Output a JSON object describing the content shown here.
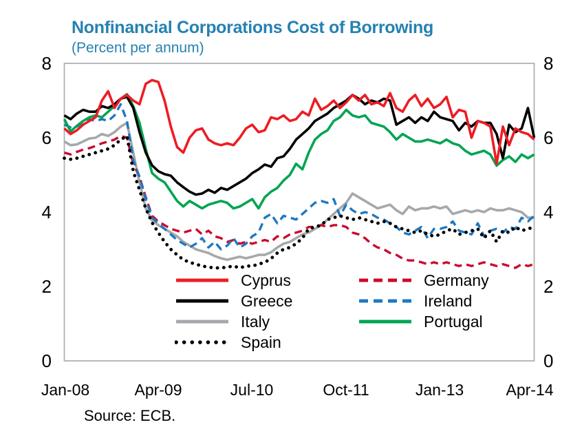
{
  "header": {
    "title": "Nonfinancial Corporations Cost of Borrowing",
    "subtitle": "(Percent per annum)"
  },
  "source_note": "Source: ECB.",
  "colors": {
    "title_accent": "#2581B2",
    "plot_border": "#B1B1B1"
  },
  "chart_data": {
    "type": "line",
    "title": "Nonfinancial Corporations Cost of Borrowing",
    "subtitle": "(Percent per annum)",
    "xlabel": "",
    "ylabel": "",
    "ylim": [
      0,
      8
    ],
    "ytick_labels": [
      "8",
      "6",
      "4",
      "2",
      "0"
    ],
    "x_tick_labels": [
      "Jan-08",
      "Apr-09",
      "Jul-10",
      "Oct-11",
      "Jan-13",
      "Apr-14"
    ],
    "x_start": "Jan-2008",
    "x_end": "Apr-2014",
    "frequency": "monthly",
    "grid": false,
    "legend_position": "inside-bottom",
    "series": [
      {
        "name": "Cyprus",
        "color": "#ED1C24",
        "style": "solid",
        "values": [
          6.25,
          6.1,
          6.2,
          6.35,
          6.45,
          6.55,
          7.0,
          7.25,
          6.8,
          7.05,
          7.15,
          7.0,
          6.9,
          7.45,
          7.55,
          7.5,
          7.0,
          6.3,
          5.75,
          5.6,
          6.0,
          6.2,
          6.25,
          5.95,
          5.85,
          5.8,
          5.85,
          5.8,
          6.0,
          6.25,
          6.35,
          6.15,
          6.2,
          6.55,
          6.5,
          6.6,
          6.45,
          6.5,
          6.7,
          6.6,
          7.05,
          6.75,
          6.85,
          7.0,
          6.8,
          6.95,
          7.15,
          7.0,
          7.15,
          6.9,
          6.95,
          6.85,
          7.2,
          6.8,
          6.7,
          7.0,
          7.15,
          6.85,
          7.05,
          6.8,
          6.9,
          7.1,
          6.55,
          6.75,
          6.7,
          6.0,
          6.45,
          6.4,
          6.3,
          5.3,
          6.3,
          5.8,
          6.25,
          6.15,
          6.1,
          5.95
        ]
      },
      {
        "name": "Germany",
        "color": "#CB0A2B",
        "style": "dashed",
        "values": [
          5.6,
          5.55,
          5.62,
          5.68,
          5.72,
          5.78,
          5.85,
          5.9,
          5.95,
          6.05,
          6.0,
          5.3,
          4.95,
          4.4,
          3.9,
          3.75,
          3.65,
          3.55,
          3.5,
          3.45,
          3.5,
          3.55,
          3.4,
          3.5,
          3.35,
          3.3,
          3.2,
          3.25,
          3.15,
          3.2,
          3.15,
          3.2,
          3.25,
          3.2,
          3.35,
          3.3,
          3.4,
          3.45,
          3.5,
          3.6,
          3.6,
          3.65,
          3.6,
          3.65,
          3.65,
          3.6,
          3.45,
          3.4,
          3.3,
          3.15,
          3.05,
          3.0,
          2.9,
          2.85,
          2.75,
          2.7,
          2.7,
          2.65,
          2.6,
          2.65,
          2.6,
          2.65,
          2.6,
          2.55,
          2.6,
          2.55,
          2.6,
          2.65,
          2.6,
          2.55,
          2.6,
          2.55,
          2.5,
          2.6,
          2.55,
          2.6
        ]
      },
      {
        "name": "Greece",
        "color": "#000000",
        "style": "solid",
        "values": [
          6.6,
          6.5,
          6.65,
          6.75,
          6.7,
          6.7,
          6.85,
          6.8,
          6.9,
          7.05,
          7.1,
          6.8,
          6.15,
          5.6,
          5.26,
          5.1,
          5.02,
          4.98,
          4.8,
          4.67,
          4.55,
          4.47,
          4.5,
          4.6,
          4.52,
          4.65,
          4.6,
          4.7,
          4.8,
          4.9,
          5.05,
          5.15,
          5.28,
          5.22,
          5.45,
          5.5,
          5.7,
          5.95,
          6.1,
          6.25,
          6.45,
          6.55,
          6.65,
          6.8,
          6.9,
          7.0,
          7.15,
          7.05,
          6.9,
          7.0,
          6.95,
          7.05,
          7.0,
          6.35,
          6.45,
          6.55,
          6.4,
          6.55,
          6.45,
          6.7,
          6.55,
          6.5,
          6.45,
          6.2,
          6.4,
          6.3,
          6.45,
          6.4,
          6.4,
          6.1,
          5.45,
          6.35,
          6.15,
          6.25,
          6.8,
          6.0
        ]
      },
      {
        "name": "Ireland",
        "color": "#1E78C2",
        "style": "dashed",
        "values": [
          6.35,
          6.28,
          6.3,
          6.4,
          6.5,
          6.45,
          6.5,
          6.45,
          6.6,
          6.9,
          6.45,
          5.4,
          4.95,
          4.35,
          3.85,
          3.7,
          3.55,
          3.4,
          3.25,
          3.15,
          3.05,
          3.15,
          3.3,
          3.05,
          3.2,
          3.0,
          3.1,
          3.3,
          3.05,
          3.15,
          3.35,
          3.45,
          3.85,
          3.95,
          3.7,
          3.9,
          3.85,
          3.8,
          3.95,
          4.1,
          4.25,
          4.3,
          4.25,
          4.35,
          3.9,
          4.2,
          4.05,
          3.95,
          4.0,
          3.95,
          3.85,
          3.8,
          3.7,
          3.6,
          3.45,
          3.4,
          3.5,
          3.6,
          3.3,
          3.55,
          3.55,
          3.6,
          3.75,
          3.5,
          3.45,
          3.4,
          3.7,
          3.35,
          3.5,
          3.55,
          3.45,
          3.6,
          3.55,
          3.85,
          3.75,
          3.9
        ]
      },
      {
        "name": "Italy",
        "color": "#A6A8AB",
        "style": "solid",
        "values": [
          5.9,
          5.8,
          5.82,
          5.9,
          5.98,
          6.0,
          6.1,
          6.05,
          6.15,
          6.3,
          6.4,
          5.6,
          4.8,
          4.1,
          3.78,
          3.65,
          3.55,
          3.45,
          3.35,
          3.2,
          3.1,
          3.0,
          2.95,
          2.9,
          2.82,
          2.76,
          2.72,
          2.76,
          2.8,
          2.76,
          2.8,
          2.85,
          2.85,
          2.92,
          3.05,
          3.15,
          3.2,
          3.3,
          3.4,
          3.45,
          3.55,
          3.65,
          3.8,
          3.95,
          4.1,
          4.25,
          4.5,
          4.4,
          4.3,
          4.2,
          4.1,
          4.15,
          4.2,
          4.05,
          3.95,
          4.15,
          4.05,
          4.1,
          4.1,
          4.15,
          4.1,
          4.15,
          3.95,
          4.0,
          4.05,
          4.0,
          4.05,
          4.0,
          4.1,
          4.05,
          4.05,
          4.1,
          4.05,
          4.0,
          3.85,
          3.85
        ]
      },
      {
        "name": "Portugal",
        "color": "#00A551",
        "style": "solid",
        "values": [
          6.5,
          6.17,
          6.32,
          6.45,
          6.55,
          6.6,
          6.55,
          6.7,
          6.85,
          7.05,
          7.17,
          6.85,
          6.4,
          5.7,
          5.05,
          4.9,
          4.8,
          4.55,
          4.3,
          4.15,
          4.3,
          4.2,
          4.1,
          4.2,
          4.25,
          4.3,
          4.25,
          4.1,
          4.15,
          4.25,
          4.35,
          4.1,
          4.4,
          4.55,
          4.65,
          4.85,
          5.0,
          5.3,
          5.15,
          5.6,
          5.95,
          6.1,
          6.2,
          6.45,
          6.55,
          6.75,
          6.6,
          6.55,
          6.6,
          6.4,
          6.35,
          6.3,
          6.15,
          5.95,
          6.1,
          6.0,
          5.9,
          5.9,
          5.95,
          5.9,
          5.85,
          5.95,
          5.85,
          5.8,
          5.65,
          5.55,
          5.6,
          5.65,
          5.55,
          5.25,
          5.4,
          5.5,
          5.35,
          5.55,
          5.45,
          5.55
        ]
      },
      {
        "name": "Spain",
        "color": "#000000",
        "style": "dotted",
        "values": [
          5.45,
          5.42,
          5.45,
          5.5,
          5.55,
          5.6,
          5.65,
          5.7,
          5.8,
          5.95,
          6.05,
          5.1,
          4.6,
          4.1,
          3.72,
          3.45,
          3.2,
          3.0,
          2.85,
          2.72,
          2.65,
          2.6,
          2.55,
          2.52,
          2.5,
          2.5,
          2.52,
          2.55,
          2.5,
          2.55,
          2.55,
          2.6,
          2.65,
          2.75,
          2.9,
          3.0,
          3.05,
          3.15,
          3.3,
          3.55,
          3.6,
          3.65,
          3.8,
          3.85,
          3.9,
          3.85,
          3.8,
          3.85,
          3.8,
          3.75,
          3.7,
          3.75,
          3.7,
          3.6,
          3.55,
          3.5,
          3.45,
          3.5,
          3.4,
          3.35,
          3.4,
          3.5,
          3.55,
          3.4,
          3.45,
          3.5,
          3.55,
          3.3,
          3.5,
          3.2,
          3.5,
          3.45,
          3.6,
          3.5,
          3.55,
          3.6
        ]
      }
    ]
  }
}
